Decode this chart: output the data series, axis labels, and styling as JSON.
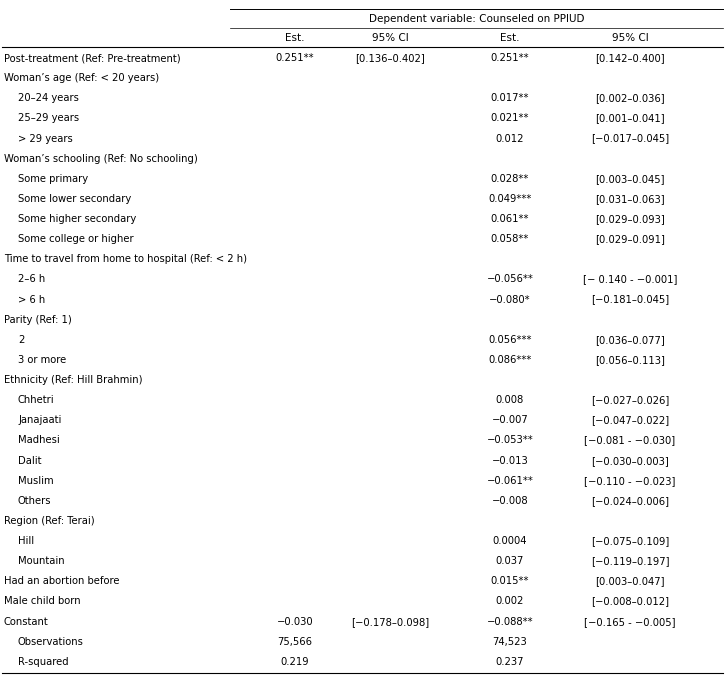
{
  "title": "Dependent variable: Counseled on PPIUD",
  "rows": [
    {
      "label": "Post-treatment (Ref: Pre-treatment)",
      "indent": 0,
      "c1": "0.251**",
      "c2": "[0.136–0.402]",
      "c3": "0.251**",
      "c4": "[0.142–0.400]"
    },
    {
      "label": "Woman’s age (Ref: < 20 years)",
      "indent": 0,
      "c1": "",
      "c2": "",
      "c3": "",
      "c4": "",
      "section": true
    },
    {
      "label": "20–24 years",
      "indent": 1,
      "c1": "",
      "c2": "",
      "c3": "0.017**",
      "c4": "[0.002–0.036]"
    },
    {
      "label": "25–29 years",
      "indent": 1,
      "c1": "",
      "c2": "",
      "c3": "0.021**",
      "c4": "[0.001–0.041]"
    },
    {
      "label": "> 29 years",
      "indent": 1,
      "c1": "",
      "c2": "",
      "c3": "0.012",
      "c4": "[−0.017–0.045]"
    },
    {
      "label": "Woman’s schooling (Ref: No schooling)",
      "indent": 0,
      "c1": "",
      "c2": "",
      "c3": "",
      "c4": "",
      "section": true
    },
    {
      "label": "Some primary",
      "indent": 1,
      "c1": "",
      "c2": "",
      "c3": "0.028**",
      "c4": "[0.003–0.045]"
    },
    {
      "label": "Some lower secondary",
      "indent": 1,
      "c1": "",
      "c2": "",
      "c3": "0.049***",
      "c4": "[0.031–0.063]"
    },
    {
      "label": "Some higher secondary",
      "indent": 1,
      "c1": "",
      "c2": "",
      "c3": "0.061**",
      "c4": "[0.029–0.093]"
    },
    {
      "label": "Some college or higher",
      "indent": 1,
      "c1": "",
      "c2": "",
      "c3": "0.058**",
      "c4": "[0.029–0.091]"
    },
    {
      "label": "Time to travel from home to hospital (Ref: < 2 h)",
      "indent": 0,
      "c1": "",
      "c2": "",
      "c3": "",
      "c4": "",
      "section": true
    },
    {
      "label": "2–6 h",
      "indent": 1,
      "c1": "",
      "c2": "",
      "c3": "−0.056**",
      "c4": "[− 0.140 - −0.001]"
    },
    {
      "label": "> 6 h",
      "indent": 1,
      "c1": "",
      "c2": "",
      "c3": "−0.080*",
      "c4": "[−0.181–0.045]"
    },
    {
      "label": "Parity (Ref: 1)",
      "indent": 0,
      "c1": "",
      "c2": "",
      "c3": "",
      "c4": "",
      "section": true
    },
    {
      "label": "2",
      "indent": 1,
      "c1": "",
      "c2": "",
      "c3": "0.056***",
      "c4": "[0.036–0.077]"
    },
    {
      "label": "3 or more",
      "indent": 1,
      "c1": "",
      "c2": "",
      "c3": "0.086***",
      "c4": "[0.056–0.113]"
    },
    {
      "label": "Ethnicity (Ref: Hill Brahmin)",
      "indent": 0,
      "c1": "",
      "c2": "",
      "c3": "",
      "c4": "",
      "section": true
    },
    {
      "label": "Chhetri",
      "indent": 1,
      "c1": "",
      "c2": "",
      "c3": "0.008",
      "c4": "[−0.027–0.026]"
    },
    {
      "label": "Janajaati",
      "indent": 1,
      "c1": "",
      "c2": "",
      "c3": "−0.007",
      "c4": "[−0.047–0.022]"
    },
    {
      "label": "Madhesi",
      "indent": 1,
      "c1": "",
      "c2": "",
      "c3": "−0.053**",
      "c4": "[−0.081 - −0.030]"
    },
    {
      "label": "Dalit",
      "indent": 1,
      "c1": "",
      "c2": "",
      "c3": "−0.013",
      "c4": "[−0.030–0.003]"
    },
    {
      "label": "Muslim",
      "indent": 1,
      "c1": "",
      "c2": "",
      "c3": "−0.061**",
      "c4": "[−0.110 - −0.023]"
    },
    {
      "label": "Others",
      "indent": 1,
      "c1": "",
      "c2": "",
      "c3": "−0.008",
      "c4": "[−0.024–0.006]"
    },
    {
      "label": "Region (Ref: Terai)",
      "indent": 0,
      "c1": "",
      "c2": "",
      "c3": "",
      "c4": "",
      "section": true
    },
    {
      "label": "Hill",
      "indent": 1,
      "c1": "",
      "c2": "",
      "c3": "0.0004",
      "c4": "[−0.075–0.109]"
    },
    {
      "label": "Mountain",
      "indent": 1,
      "c1": "",
      "c2": "",
      "c3": "0.037",
      "c4": "[−0.119–0.197]"
    },
    {
      "label": "Had an abortion before",
      "indent": 0,
      "c1": "",
      "c2": "",
      "c3": "0.015**",
      "c4": "[0.003–0.047]"
    },
    {
      "label": "Male child born",
      "indent": 0,
      "c1": "",
      "c2": "",
      "c3": "0.002",
      "c4": "[−0.008–0.012]"
    },
    {
      "label": "Constant",
      "indent": 0,
      "c1": "−0.030",
      "c2": "[−0.178–0.098]",
      "c3": "−0.088**",
      "c4": "[−0.165 - −0.005]"
    },
    {
      "label": "Observations",
      "indent": 1,
      "c1": "75,566",
      "c2": "",
      "c3": "74,523",
      "c4": ""
    },
    {
      "label": "R-squared",
      "indent": 1,
      "c1": "0.219",
      "c2": "",
      "c3": "0.237",
      "c4": ""
    }
  ],
  "bg_color": "#ffffff",
  "text_color": "#000000",
  "font_size": 7.2,
  "header_font_size": 7.5
}
